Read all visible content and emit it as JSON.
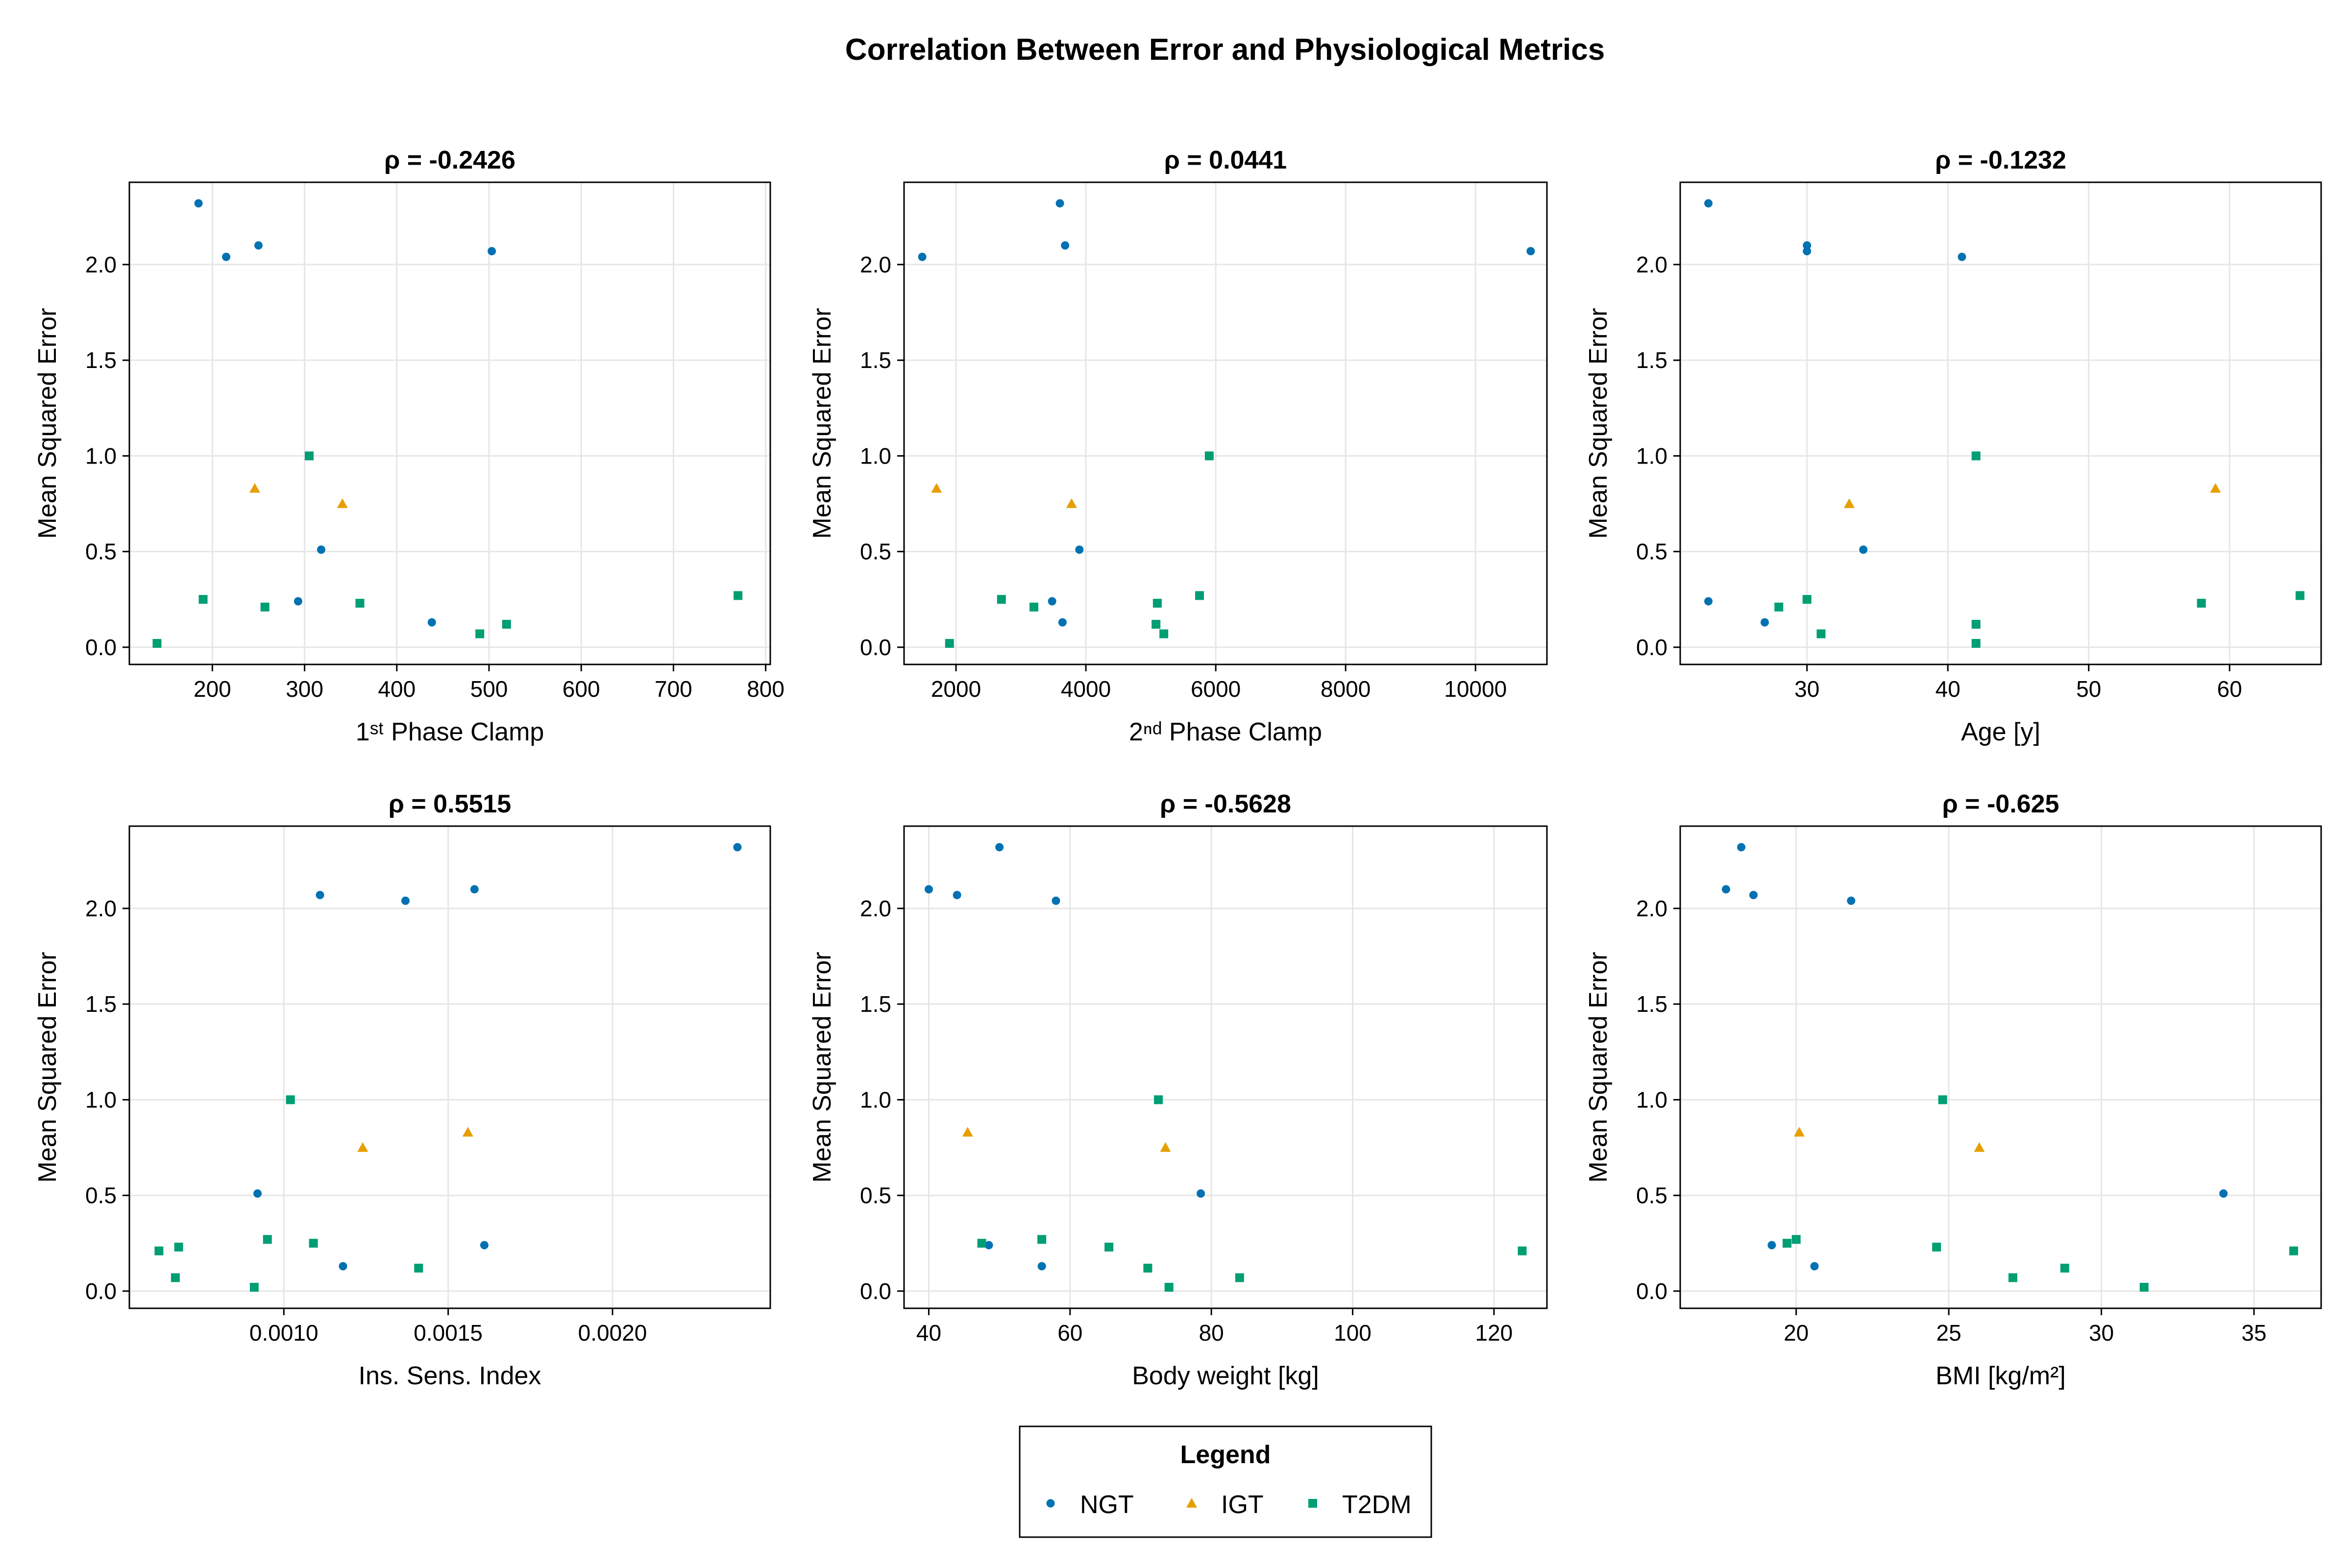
{
  "figure": {
    "title": "Correlation Between Error and Physiological Metrics"
  },
  "colors": {
    "NGT": "#0072B2",
    "IGT": "#E69F00",
    "T2DM": "#009E73",
    "grid": "#e6e6e6",
    "frame": "#000000"
  },
  "legend": {
    "title": "Legend",
    "position": "bottom-center",
    "items": [
      {
        "group": "NGT",
        "label": "NGT",
        "marker": "circle"
      },
      {
        "group": "IGT",
        "label": "IGT",
        "marker": "triangle"
      },
      {
        "group": "T2DM",
        "label": "T2DM",
        "marker": "square"
      }
    ]
  },
  "chart_data": [
    {
      "type": "scatter",
      "title": "ρ = -0.2426",
      "xlabel": "1ˢᵗ Phase Clamp",
      "ylabel": "Mean Squared Error",
      "xlim": [
        110,
        805
      ],
      "ylim": [
        -0.09,
        2.43
      ],
      "grid": true,
      "xticks": [
        200,
        300,
        400,
        500,
        600,
        700,
        800
      ],
      "xtick_labels": [
        "200",
        "300",
        "400",
        "500",
        "600",
        "700",
        "800"
      ],
      "yticks": [
        0,
        0.5,
        1,
        1.5,
        2
      ],
      "ytick_labels": [
        "0.0",
        "0.5",
        "1.0",
        "1.5",
        "2.0"
      ],
      "series": [
        {
          "name": "NGT",
          "points": [
            [
              185,
              2.32
            ],
            [
              215,
              2.04
            ],
            [
              250,
              2.1
            ],
            [
              503,
              2.07
            ],
            [
              318,
              0.51
            ],
            [
              293,
              0.24
            ],
            [
              438,
              0.13
            ]
          ]
        },
        {
          "name": "IGT",
          "points": [
            [
              246,
              0.83
            ],
            [
              341,
              0.75
            ]
          ]
        },
        {
          "name": "T2DM",
          "points": [
            [
              305,
              1.0
            ],
            [
              190,
              0.25
            ],
            [
              257,
              0.21
            ],
            [
              360,
              0.23
            ],
            [
              770,
              0.27
            ],
            [
              490,
              0.07
            ],
            [
              519,
              0.12
            ],
            [
              140,
              0.02
            ]
          ]
        }
      ]
    },
    {
      "type": "scatter",
      "title": "ρ = 0.0441",
      "xlabel": "2ⁿᵈ Phase Clamp",
      "ylabel": "Mean Squared Error",
      "xlim": [
        1200,
        11100
      ],
      "ylim": [
        -0.09,
        2.43
      ],
      "grid": true,
      "xticks": [
        2000,
        4000,
        6000,
        8000,
        10000
      ],
      "xtick_labels": [
        "2000",
        "4000",
        "6000",
        "8000",
        "10000"
      ],
      "yticks": [
        0,
        0.5,
        1,
        1.5,
        2
      ],
      "ytick_labels": [
        "0.0",
        "0.5",
        "1.0",
        "1.5",
        "2.0"
      ],
      "series": [
        {
          "name": "NGT",
          "points": [
            [
              1480,
              2.04
            ],
            [
              3600,
              2.32
            ],
            [
              3680,
              2.1
            ],
            [
              10850,
              2.07
            ],
            [
              3900,
              0.51
            ],
            [
              3480,
              0.24
            ],
            [
              3640,
              0.13
            ]
          ]
        },
        {
          "name": "IGT",
          "points": [
            [
              1700,
              0.83
            ],
            [
              3780,
              0.75
            ]
          ]
        },
        {
          "name": "T2DM",
          "points": [
            [
              5900,
              1.0
            ],
            [
              2700,
              0.25
            ],
            [
              3200,
              0.21
            ],
            [
              5100,
              0.23
            ],
            [
              5750,
              0.27
            ],
            [
              5200,
              0.07
            ],
            [
              5080,
              0.12
            ],
            [
              1900,
              0.02
            ]
          ]
        }
      ]
    },
    {
      "type": "scatter",
      "title": "ρ = -0.1232",
      "xlabel": "Age [y]",
      "ylabel": "Mean Squared Error",
      "xlim": [
        21,
        66.5
      ],
      "ylim": [
        -0.09,
        2.43
      ],
      "grid": true,
      "xticks": [
        30,
        40,
        50,
        60
      ],
      "xtick_labels": [
        "30",
        "40",
        "50",
        "60"
      ],
      "yticks": [
        0,
        0.5,
        1,
        1.5,
        2
      ],
      "ytick_labels": [
        "0.0",
        "0.5",
        "1.0",
        "1.5",
        "2.0"
      ],
      "series": [
        {
          "name": "NGT",
          "points": [
            [
              23,
              2.32
            ],
            [
              30,
              2.1
            ],
            [
              30,
              2.07
            ],
            [
              41,
              2.04
            ],
            [
              34,
              0.51
            ],
            [
              23,
              0.24
            ],
            [
              27,
              0.13
            ]
          ]
        },
        {
          "name": "IGT",
          "points": [
            [
              33,
              0.75
            ],
            [
              59,
              0.83
            ]
          ]
        },
        {
          "name": "T2DM",
          "points": [
            [
              42,
              1.0
            ],
            [
              30,
              0.25
            ],
            [
              28,
              0.21
            ],
            [
              58,
              0.23
            ],
            [
              65,
              0.27
            ],
            [
              31,
              0.07
            ],
            [
              42,
              0.12
            ],
            [
              42,
              0.02
            ]
          ]
        }
      ]
    },
    {
      "type": "scatter",
      "title": "ρ = 0.5515",
      "xlabel": "Ins. Sens. Index",
      "ylabel": "Mean Squared Error",
      "xlim": [
        0.00053,
        0.00248
      ],
      "ylim": [
        -0.09,
        2.43
      ],
      "grid": true,
      "xticks": [
        0.001,
        0.0015,
        0.002
      ],
      "xtick_labels": [
        "0.0010",
        "0.0015",
        "0.0020"
      ],
      "yticks": [
        0,
        0.5,
        1,
        1.5,
        2
      ],
      "ytick_labels": [
        "0.0",
        "0.5",
        "1.0",
        "1.5",
        "2.0"
      ],
      "series": [
        {
          "name": "NGT",
          "points": [
            [
              0.00238,
              2.32
            ],
            [
              0.00158,
              2.1
            ],
            [
              0.00111,
              2.07
            ],
            [
              0.00137,
              2.04
            ],
            [
              0.00092,
              0.51
            ],
            [
              0.00161,
              0.24
            ],
            [
              0.00118,
              0.13
            ]
          ]
        },
        {
          "name": "IGT",
          "points": [
            [
              0.00156,
              0.83
            ],
            [
              0.00124,
              0.75
            ]
          ]
        },
        {
          "name": "T2DM",
          "points": [
            [
              0.00102,
              1.0
            ],
            [
              0.00095,
              0.27
            ],
            [
              0.00109,
              0.25
            ],
            [
              0.00068,
              0.23
            ],
            [
              0.00062,
              0.21
            ],
            [
              0.00141,
              0.12
            ],
            [
              0.00067,
              0.07
            ],
            [
              0.00091,
              0.02
            ]
          ]
        }
      ]
    },
    {
      "type": "scatter",
      "title": "ρ = -0.5628",
      "xlabel": "Body weight [kg]",
      "ylabel": "Mean Squared Error",
      "xlim": [
        36.5,
        127.5
      ],
      "ylim": [
        -0.09,
        2.43
      ],
      "grid": true,
      "xticks": [
        40,
        60,
        80,
        100,
        120
      ],
      "xtick_labels": [
        "40",
        "60",
        "80",
        "100",
        "120"
      ],
      "yticks": [
        0,
        0.5,
        1,
        1.5,
        2
      ],
      "ytick_labels": [
        "0.0",
        "0.5",
        "1.0",
        "1.5",
        "2.0"
      ],
      "series": [
        {
          "name": "NGT",
          "points": [
            [
              50,
              2.32
            ],
            [
              40,
              2.1
            ],
            [
              44,
              2.07
            ],
            [
              58,
              2.04
            ],
            [
              78.5,
              0.51
            ],
            [
              48.5,
              0.24
            ],
            [
              56,
              0.13
            ]
          ]
        },
        {
          "name": "IGT",
          "points": [
            [
              45.5,
              0.83
            ],
            [
              73.5,
              0.75
            ]
          ]
        },
        {
          "name": "T2DM",
          "points": [
            [
              72.5,
              1.0
            ],
            [
              56,
              0.27
            ],
            [
              47.5,
              0.25
            ],
            [
              65.5,
              0.23
            ],
            [
              124,
              0.21
            ],
            [
              71,
              0.12
            ],
            [
              84,
              0.07
            ],
            [
              74,
              0.02
            ]
          ]
        }
      ]
    },
    {
      "type": "scatter",
      "title": "ρ = -0.625",
      "xlabel": "BMI [kg/m²]",
      "ylabel": "Mean Squared Error",
      "xlim": [
        16.2,
        37.2
      ],
      "ylim": [
        -0.09,
        2.43
      ],
      "grid": true,
      "xticks": [
        20,
        25,
        30,
        35
      ],
      "xtick_labels": [
        "20",
        "25",
        "30",
        "35"
      ],
      "yticks": [
        0,
        0.5,
        1,
        1.5,
        2
      ],
      "ytick_labels": [
        "0.0",
        "0.5",
        "1.0",
        "1.5",
        "2.0"
      ],
      "series": [
        {
          "name": "NGT",
          "points": [
            [
              18.2,
              2.32
            ],
            [
              17.7,
              2.1
            ],
            [
              18.6,
              2.07
            ],
            [
              21.8,
              2.04
            ],
            [
              34,
              0.51
            ],
            [
              19.2,
              0.24
            ],
            [
              20.6,
              0.13
            ]
          ]
        },
        {
          "name": "IGT",
          "points": [
            [
              20.1,
              0.83
            ],
            [
              26,
              0.75
            ]
          ]
        },
        {
          "name": "T2DM",
          "points": [
            [
              24.8,
              1.0
            ],
            [
              20,
              0.27
            ],
            [
              19.7,
              0.25
            ],
            [
              24.6,
              0.23
            ],
            [
              36.3,
              0.21
            ],
            [
              28.8,
              0.12
            ],
            [
              27.1,
              0.07
            ],
            [
              31.4,
              0.02
            ]
          ]
        }
      ]
    }
  ]
}
